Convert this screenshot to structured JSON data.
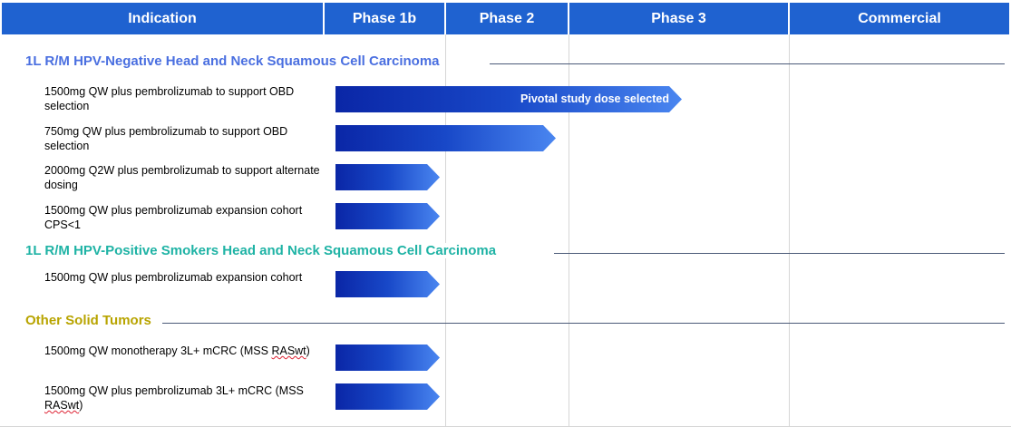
{
  "header": {
    "indication": "Indication",
    "phase1b": "Phase 1b",
    "phase2": "Phase 2",
    "phase3": "Phase 3",
    "commercial": "Commercial"
  },
  "colors": {
    "header_bg": "#1f62d0",
    "section_negative": "#4a6fe0",
    "section_positive": "#1fb3a5",
    "section_other": "#b8a400",
    "bar_start": "#0a26a6",
    "bar_end": "#4a86f0"
  },
  "sections": [
    {
      "title": "1L R/M HPV-Negative Head and Neck Squamous Cell Carcinoma",
      "rows": [
        {
          "label": "1500mg QW plus pembrolizumab to support OBD selection",
          "stage": "Phase 3",
          "note": "Pivotal study dose selected"
        },
        {
          "label": "750mg QW plus pembrolizumab to support OBD selection",
          "stage": "Phase 2"
        },
        {
          "label": "2000mg Q2W plus pembrolizumab to support alternate dosing",
          "stage": "Phase 1b"
        },
        {
          "label": "1500mg QW plus pembrolizumab expansion cohort CPS<1",
          "stage": "Phase 1b"
        }
      ]
    },
    {
      "title": "1L R/M HPV-Positive Smokers Head and Neck Squamous Cell Carcinoma",
      "rows": [
        {
          "label": "1500mg QW plus pembrolizumab expansion cohort",
          "stage": "Phase 1b"
        }
      ]
    },
    {
      "title": "Other Solid Tumors",
      "rows": [
        {
          "label_pre": "1500mg QW monotherapy 3L+ mCRC (MSS ",
          "label_mark": "RASwt",
          "label_post": ")",
          "stage": "Phase 1b"
        },
        {
          "label_pre": "1500mg QW plus pembrolizumab 3L+ mCRC (MSS ",
          "label_mark": "RASwt",
          "label_post": ")",
          "stage": "Phase 1b"
        }
      ]
    }
  ]
}
